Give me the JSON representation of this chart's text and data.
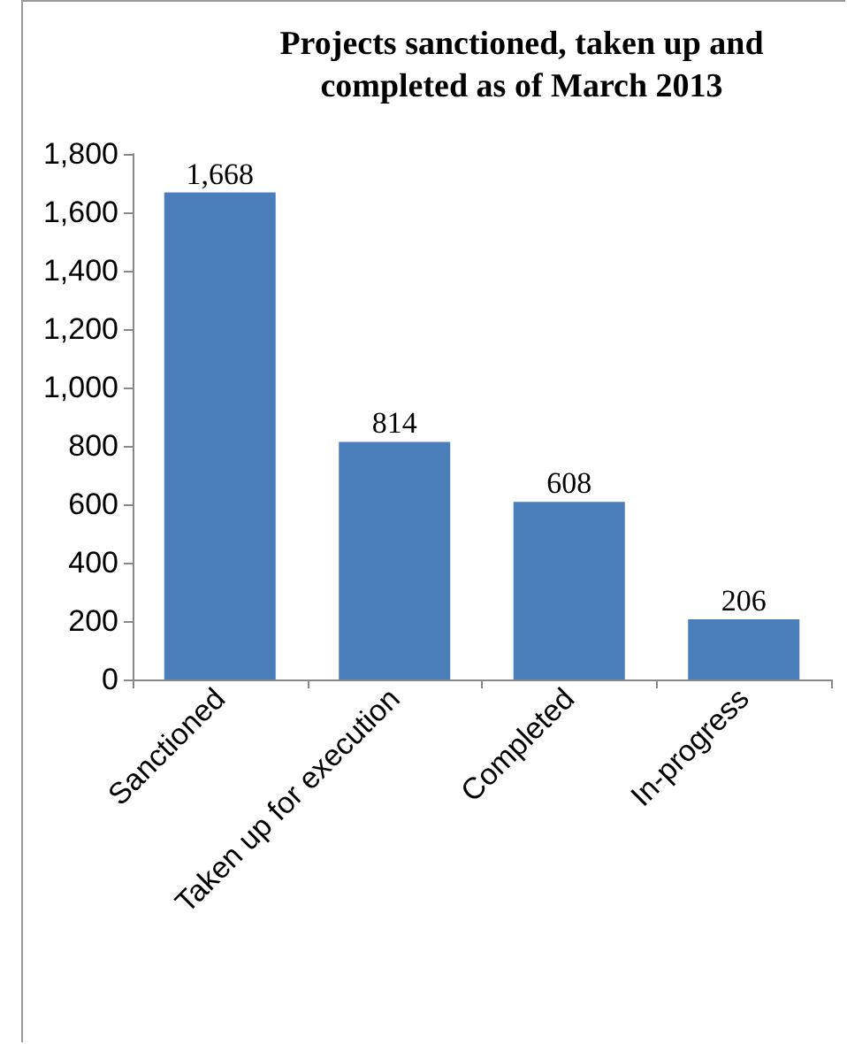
{
  "chart_data": {
    "type": "bar",
    "title": "Projects sanctioned, taken up and\ncompleted as of March 2013",
    "categories": [
      "Sanctioned",
      "Taken up for execution",
      "Completed",
      "In-progress"
    ],
    "values": [
      1668,
      814,
      608,
      206
    ],
    "color": "#4a7ebb",
    "value_labels": [
      "1,668",
      "814",
      "608",
      "206"
    ],
    "ylim": [
      0,
      1800
    ],
    "yticks": [
      {
        "value": 0,
        "label": "0"
      },
      {
        "value": 200,
        "label": "200"
      },
      {
        "value": 400,
        "label": "400"
      },
      {
        "value": 600,
        "label": "600"
      },
      {
        "value": 800,
        "label": "800"
      },
      {
        "value": 1000,
        "label": "1,000"
      },
      {
        "value": 1200,
        "label": "1,200"
      },
      {
        "value": 1400,
        "label": "1,400"
      },
      {
        "value": 1600,
        "label": "1,600"
      },
      {
        "value": 1800,
        "label": "1,800"
      }
    ],
    "grid": false
  }
}
